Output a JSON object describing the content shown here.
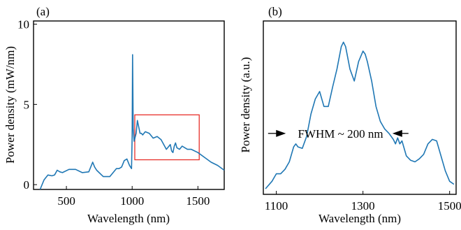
{
  "chart_data": [
    {
      "panel_label": "(a)",
      "type": "line",
      "xlabel": "Wavelength (nm)",
      "ylabel": "Power density (mW/nm)",
      "xlim": [
        250,
        1700
      ],
      "ylim": [
        -0.3,
        10.2
      ],
      "xticks": [
        500,
        1000,
        1500
      ],
      "yticks": [
        0,
        5,
        10
      ],
      "grid": false,
      "series_color": "#1f77b4",
      "highlight_box_color": "#e8302a",
      "highlight_box": {
        "x": [
          1020,
          1510
        ],
        "y": [
          1.55,
          4.35
        ]
      },
      "x": [
        300,
        330,
        360,
        390,
        410,
        430,
        450,
        470,
        520,
        570,
        620,
        670,
        700,
        715,
        730,
        780,
        830,
        880,
        900,
        920,
        940,
        960,
        980,
        995,
        1000,
        1003,
        1008,
        1015,
        1030,
        1040,
        1050,
        1060,
        1070,
        1080,
        1100,
        1130,
        1160,
        1190,
        1220,
        1260,
        1290,
        1300,
        1310,
        1320,
        1330,
        1340,
        1360,
        1380,
        1400,
        1420,
        1450,
        1500,
        1550,
        1600,
        1650,
        1700
      ],
      "y": [
        -0.3,
        0.3,
        0.6,
        0.55,
        0.6,
        0.9,
        0.8,
        0.75,
        0.95,
        0.95,
        0.75,
        0.8,
        1.4,
        1.1,
        0.9,
        0.5,
        0.5,
        1.0,
        1.0,
        1.1,
        1.5,
        1.6,
        1.2,
        1.0,
        3.0,
        8.1,
        3.5,
        2.7,
        3.2,
        4.0,
        3.6,
        3.2,
        3.2,
        3.1,
        3.3,
        3.2,
        2.9,
        3.0,
        2.8,
        2.2,
        2.5,
        2.1,
        2.0,
        2.4,
        2.6,
        2.3,
        2.2,
        2.4,
        2.3,
        2.2,
        2.2,
        2.0,
        1.7,
        1.4,
        1.2,
        0.9
      ]
    },
    {
      "panel_label": "(b)",
      "type": "line",
      "xlabel": "Wavelength (nm)",
      "ylabel": "Power density (a.u.)",
      "xlim": [
        1070,
        1515
      ],
      "ylim": [
        0,
        1
      ],
      "xticks": [
        1100,
        1300,
        1500
      ],
      "grid": false,
      "series_color": "#1f77b4",
      "annotation": {
        "text": "FWHM ~ 200 nm",
        "level": 0.37,
        "arrow_left_x": [
          1081,
          1122
        ],
        "arrow_right_x": [
          1405,
          1368
        ]
      },
      "x": [
        1075,
        1090,
        1100,
        1110,
        1120,
        1130,
        1140,
        1145,
        1150,
        1160,
        1170,
        1180,
        1190,
        1200,
        1210,
        1220,
        1230,
        1240,
        1250,
        1255,
        1260,
        1270,
        1280,
        1290,
        1300,
        1305,
        1310,
        1320,
        1330,
        1340,
        1350,
        1360,
        1370,
        1375,
        1380,
        1385,
        1390,
        1400,
        1410,
        1420,
        1430,
        1440,
        1450,
        1460,
        1470,
        1480,
        1490,
        1500,
        1510
      ],
      "y": [
        0.0,
        0.05,
        0.1,
        0.1,
        0.13,
        0.18,
        0.28,
        0.3,
        0.28,
        0.27,
        0.35,
        0.5,
        0.6,
        0.65,
        0.55,
        0.55,
        0.68,
        0.8,
        0.95,
        0.98,
        0.95,
        0.8,
        0.72,
        0.85,
        0.92,
        0.9,
        0.85,
        0.72,
        0.55,
        0.45,
        0.4,
        0.37,
        0.33,
        0.3,
        0.34,
        0.3,
        0.32,
        0.22,
        0.19,
        0.18,
        0.2,
        0.23,
        0.3,
        0.33,
        0.32,
        0.22,
        0.12,
        0.05,
        0.03
      ]
    }
  ]
}
